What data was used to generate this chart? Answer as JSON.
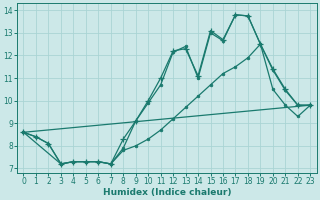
{
  "xlabel": "Humidex (Indice chaleur)",
  "bg_color": "#cce8e8",
  "grid_color": "#aad4d4",
  "line_color": "#1a7a6e",
  "xlim": [
    -0.5,
    23.5
  ],
  "ylim": [
    6.8,
    14.3
  ],
  "xticks": [
    0,
    1,
    2,
    3,
    4,
    5,
    6,
    7,
    8,
    9,
    10,
    11,
    12,
    13,
    14,
    15,
    16,
    17,
    18,
    19,
    20,
    21,
    22,
    23
  ],
  "yticks": [
    7,
    8,
    9,
    10,
    11,
    12,
    13,
    14
  ],
  "line1_x": [
    0,
    1,
    2,
    3,
    4,
    5,
    6,
    7,
    8,
    9,
    10,
    11,
    12,
    13,
    14,
    15,
    16,
    17,
    18,
    19,
    20,
    21,
    22,
    23
  ],
  "line1_y": [
    8.6,
    8.4,
    8.1,
    7.2,
    7.3,
    7.3,
    7.3,
    7.2,
    8.3,
    9.1,
    10.0,
    11.0,
    12.2,
    12.3,
    11.1,
    13.1,
    12.7,
    13.8,
    13.75,
    12.5,
    11.4,
    10.5,
    9.8,
    9.8
  ],
  "line2_x": [
    0,
    1,
    2,
    3,
    4,
    5,
    6,
    7,
    8,
    9,
    10,
    11,
    12,
    13,
    14,
    15,
    16,
    17,
    18,
    19,
    20,
    21,
    22,
    23
  ],
  "line2_y": [
    8.6,
    8.4,
    8.1,
    7.2,
    7.3,
    7.3,
    7.3,
    7.2,
    7.9,
    9.1,
    9.9,
    10.7,
    12.15,
    12.4,
    11.0,
    13.0,
    12.65,
    13.8,
    13.75,
    12.5,
    11.35,
    10.45,
    9.8,
    9.8
  ],
  "line3_x": [
    0,
    23
  ],
  "line3_y": [
    8.6,
    9.8
  ],
  "line4_x": [
    0,
    3,
    4,
    5,
    6,
    7,
    8,
    9,
    10,
    11,
    12,
    13,
    14,
    15,
    16,
    17,
    18,
    19,
    20,
    21,
    22,
    23
  ],
  "line4_y": [
    8.6,
    7.2,
    7.3,
    7.3,
    7.3,
    7.2,
    7.8,
    8.0,
    8.3,
    8.7,
    9.2,
    9.7,
    10.2,
    10.7,
    11.2,
    11.5,
    11.9,
    12.5,
    10.5,
    9.8,
    9.3,
    9.8
  ]
}
